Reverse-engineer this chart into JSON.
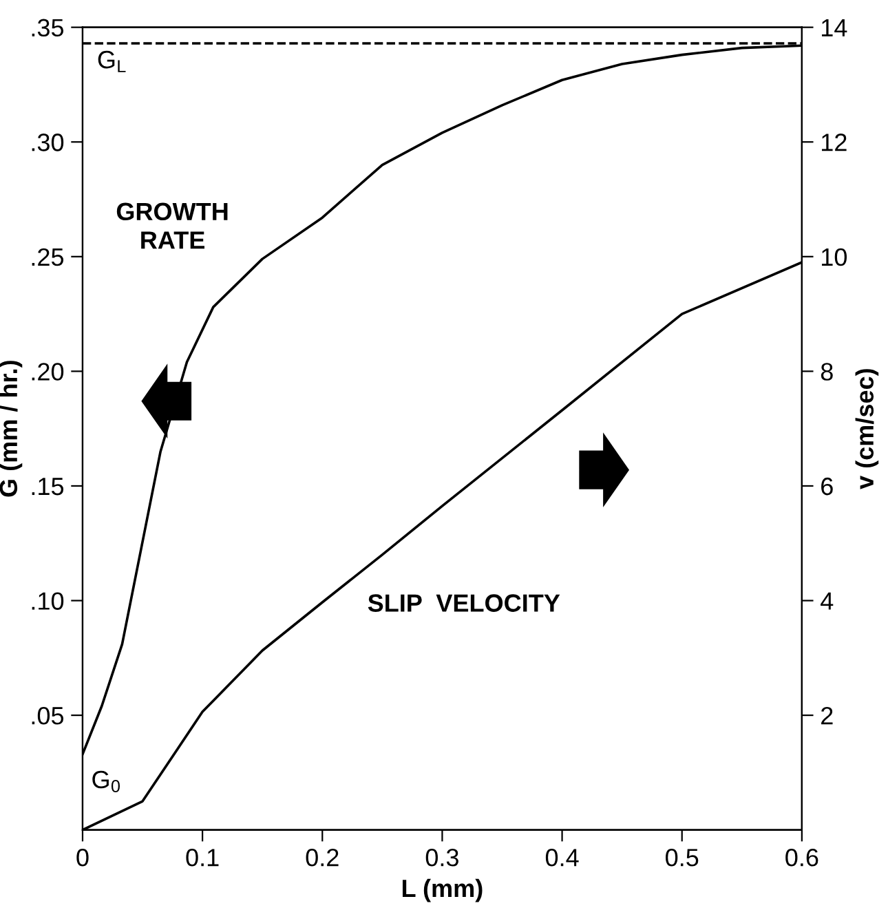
{
  "chart_data": {
    "type": "line",
    "xlabel": "L (mm)",
    "ylabel": "G (mm / hr.)",
    "y2label": "v (cm/sec)",
    "xlim": [
      0,
      0.6
    ],
    "xticks": [
      0,
      0.1,
      0.2,
      0.3,
      0.4,
      0.5,
      0.6
    ],
    "ylim": [
      0,
      0.35
    ],
    "yticks": [
      {
        "value": 0.05,
        "label": ".05"
      },
      {
        "value": 0.1,
        "label": ".10"
      },
      {
        "value": 0.15,
        "label": ".15"
      },
      {
        "value": 0.2,
        "label": ".20"
      },
      {
        "value": 0.25,
        "label": ".25"
      },
      {
        "value": 0.3,
        "label": ".30"
      },
      {
        "value": 0.35,
        "label": ".35"
      }
    ],
    "y2lim": [
      0,
      14
    ],
    "y2ticks": [
      2,
      4,
      6,
      8,
      10,
      12,
      14
    ],
    "grid": false,
    "marker": "none",
    "line_style": "solid",
    "series": [
      {
        "color": "#000000",
        "x": [
          0,
          0.016,
          0.033,
          0.049,
          0.065,
          0.087,
          0.109,
          0.15,
          0.2,
          0.25,
          0.3,
          0.35,
          0.4,
          0.45,
          0.5,
          0.55,
          0.6
        ],
        "values": [
          0.033,
          0.054,
          0.081,
          0.123,
          0.165,
          0.204,
          0.228,
          0.249,
          0.267,
          0.29,
          0.304,
          0.316,
          0.327,
          0.334,
          0.338,
          0.341,
          0.342
        ]
      },
      {
        "color": "#000000",
        "axis": "y2",
        "x": [
          0,
          0.05,
          0.1,
          0.15,
          0.2,
          0.25,
          0.3,
          0.4,
          0.5,
          0.6
        ],
        "values": [
          0,
          0.5,
          2.06,
          3.13,
          3.97,
          4.8,
          5.65,
          7.32,
          9.0,
          9.9
        ]
      }
    ],
    "ref_lines": [
      {
        "axis": "y",
        "value": 0.343,
        "label": "G$_{L}$",
        "line_style": "dashed",
        "color": "#000000"
      }
    ],
    "annotations": [
      "GROWTH\nRATE",
      "SLIP  VELOCITY",
      "G$_{0}$"
    ]
  }
}
